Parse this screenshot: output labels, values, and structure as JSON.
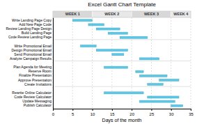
{
  "chart_data": {
    "type": "gantt",
    "orientation": "horizontal",
    "title": "Excel Gantt Chart Template",
    "x_label": "Days of the month",
    "categories": [
      "Write Landing Page Copy",
      "Add New Page Code",
      "Review Landing Page Design",
      "Build Landing Page",
      "Code Review Landing Page",
      null,
      "Write Promotional Email",
      "Design Promotional Email",
      "Send Promotional Email",
      "Analyze Campaign Results",
      null,
      "Plan Agenda for Meeting",
      "Reserve Room",
      "Finalize Presentation",
      "Approve Presentation",
      "Create Invitations",
      null,
      "Rewrite Online Calculator",
      "Code Review Calculator",
      "Update Messaging",
      "Publish Calculator"
    ],
    "starts": [
      5,
      9,
      11,
      14,
      17,
      0,
      7,
      11,
      15,
      22,
      0,
      13,
      21,
      22,
      27,
      24,
      0,
      13,
      24,
      22,
      30
    ],
    "values": [
      5,
      4,
      6,
      5,
      7,
      0,
      4,
      8,
      3,
      5,
      0,
      6,
      2,
      7,
      5,
      4,
      0,
      10,
      8,
      9,
      3
    ],
    "color": "#5BC8E8",
    "xlim": [
      0,
      35
    ],
    "xticks": [
      0,
      5,
      10,
      15,
      20,
      25,
      30,
      35
    ],
    "grid": true,
    "week_labels": [
      "WEEK 1",
      "WEEK 2",
      "WEEK 3",
      "WEEK 4"
    ],
    "week_edges": [
      0,
      10,
      20,
      30,
      35
    ]
  }
}
